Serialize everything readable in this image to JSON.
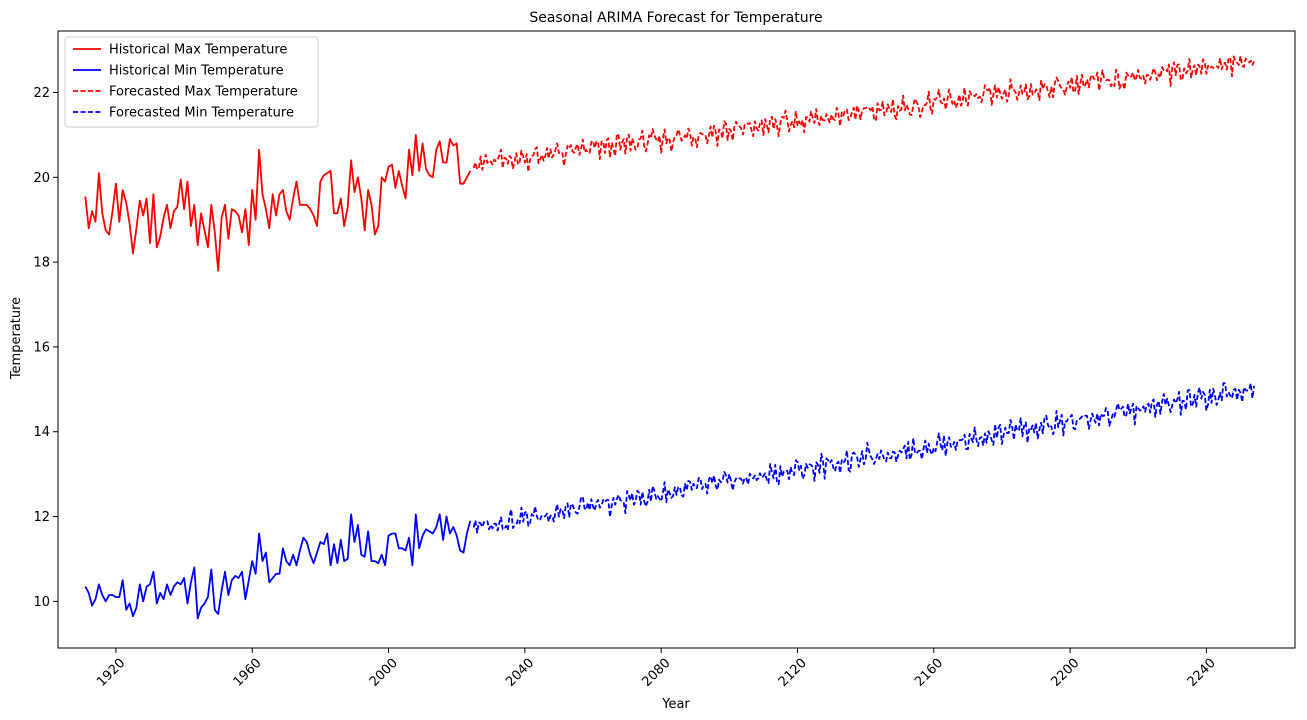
{
  "chart_data": {
    "type": "line",
    "title": "Seasonal ARIMA Forecast for Temperature",
    "xlabel": "Year",
    "ylabel": "Temperature",
    "xlim": [
      1903,
      2266
    ],
    "ylim": [
      8.9,
      23.45
    ],
    "xticks": [
      1920,
      1960,
      2000,
      2040,
      2080,
      2120,
      2160,
      2200,
      2240
    ],
    "yticks": [
      10,
      12,
      14,
      16,
      18,
      20,
      22
    ],
    "grid": false,
    "legend_position": "top-left",
    "series": [
      {
        "name": "Historical Max Temperature",
        "color": "#ff0000",
        "style": "solid",
        "x_start": 1911,
        "x_step": 1,
        "values": [
          19.55,
          18.8,
          19.2,
          18.95,
          20.1,
          19.15,
          18.75,
          18.65,
          19.2,
          19.85,
          18.95,
          19.7,
          19.4,
          18.9,
          18.2,
          18.8,
          19.45,
          19.1,
          19.5,
          18.45,
          19.6,
          18.35,
          18.6,
          19.05,
          19.35,
          18.8,
          19.2,
          19.3,
          19.95,
          19.25,
          19.9,
          18.85,
          19.35,
          18.4,
          19.15,
          18.75,
          18.35,
          19.35,
          18.7,
          17.8,
          19.05,
          19.35,
          18.55,
          19.25,
          19.2,
          19.1,
          18.7,
          19.25,
          18.4,
          19.7,
          19.0,
          20.65,
          19.6,
          19.25,
          18.8,
          19.6,
          19.1,
          19.6,
          19.7,
          19.2,
          19.0,
          19.5,
          19.9,
          19.35,
          19.35,
          19.35,
          19.25,
          19.1,
          18.85,
          19.9,
          20.05,
          20.1,
          20.15,
          19.15,
          19.15,
          19.5,
          18.85,
          19.3,
          20.4,
          19.65,
          20.0,
          19.5,
          18.75,
          19.7,
          19.35,
          18.65,
          18.85,
          20.0,
          19.9,
          20.25,
          20.3,
          19.75,
          20.15,
          19.8,
          19.5,
          20.65,
          20.05,
          21.0,
          20.15,
          20.8,
          20.2,
          20.05,
          20.0,
          20.65,
          20.85,
          20.35,
          20.35,
          20.9,
          20.75,
          20.8,
          19.85,
          19.85,
          20.0,
          20.15
        ]
      },
      {
        "name": "Historical Min Temperature",
        "color": "#0000ff",
        "style": "solid",
        "x_start": 1911,
        "x_step": 1,
        "values": [
          10.35,
          10.2,
          9.9,
          10.05,
          10.4,
          10.15,
          10.0,
          10.15,
          10.15,
          10.1,
          10.1,
          10.5,
          9.8,
          9.95,
          9.65,
          9.85,
          10.4,
          10.0,
          10.35,
          10.4,
          10.7,
          9.95,
          10.2,
          10.05,
          10.4,
          10.15,
          10.35,
          10.45,
          10.4,
          10.55,
          9.95,
          10.45,
          10.8,
          9.6,
          9.85,
          9.95,
          10.1,
          10.75,
          9.8,
          9.7,
          10.25,
          10.7,
          10.15,
          10.5,
          10.6,
          10.55,
          10.7,
          10.05,
          10.5,
          10.95,
          10.65,
          11.6,
          10.95,
          11.15,
          10.45,
          10.55,
          10.65,
          10.65,
          11.25,
          10.95,
          10.85,
          11.1,
          10.85,
          11.2,
          11.5,
          11.4,
          11.1,
          10.9,
          11.15,
          11.4,
          11.35,
          11.6,
          10.85,
          11.35,
          10.9,
          11.45,
          10.95,
          11.0,
          12.05,
          11.4,
          11.8,
          11.1,
          11.05,
          11.65,
          10.95,
          10.95,
          10.9,
          11.1,
          10.85,
          11.55,
          11.6,
          11.6,
          11.25,
          11.25,
          11.2,
          11.5,
          10.85,
          12.05,
          11.25,
          11.55,
          11.7,
          11.65,
          11.6,
          11.75,
          12.05,
          11.45,
          12.0,
          11.6,
          11.75,
          11.55,
          11.2,
          11.15,
          11.6,
          11.9
        ]
      },
      {
        "name": "Forecasted Max Temperature",
        "color": "#ff0000",
        "style": "dashed",
        "x_start": 2025,
        "x_step": 0.5,
        "trend": {
          "start": 20.3,
          "end": 22.75
        },
        "x_end": 2254
      },
      {
        "name": "Forecasted Min Temperature",
        "color": "#0000ff",
        "style": "dashed",
        "x_start": 2025,
        "x_step": 0.5,
        "trend": {
          "start": 11.75,
          "end": 15.0
        },
        "x_end": 2254
      }
    ]
  }
}
